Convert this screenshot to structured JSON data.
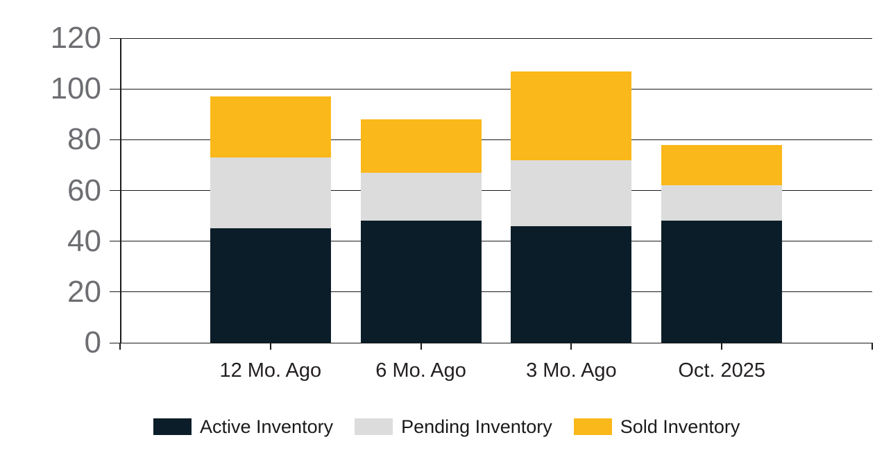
{
  "chart_data": {
    "type": "bar",
    "variant": "stacked-column",
    "title": "",
    "xlabel": "",
    "ylabel": "",
    "categories": [
      "12 Mo. Ago",
      "6 Mo. Ago",
      "3 Mo. Ago",
      "Oct. 2025"
    ],
    "series": [
      {
        "name": "Active Inventory",
        "color": "#0b1d28",
        "values": [
          45,
          48,
          46,
          48
        ]
      },
      {
        "name": "Pending Inventory",
        "color": "#dcdcdc",
        "values": [
          28,
          19,
          26,
          14
        ]
      },
      {
        "name": "Sold Inventory",
        "color": "#fbb81a",
        "values": [
          24,
          21,
          35,
          16
        ]
      }
    ],
    "stack_totals": [
      97,
      88,
      107,
      78
    ],
    "ylim": [
      0,
      120
    ],
    "yticks": [
      0,
      20,
      40,
      60,
      80,
      100,
      120
    ],
    "grid": "horizontal",
    "legend_position": "bottom",
    "colors": {
      "background": "#ffffff",
      "axis_and_grid": "#1a1a1a",
      "y_tick_label": "#6d6e71",
      "x_tick_label": "#231f20",
      "legend_text": "#1a1a1a"
    }
  }
}
